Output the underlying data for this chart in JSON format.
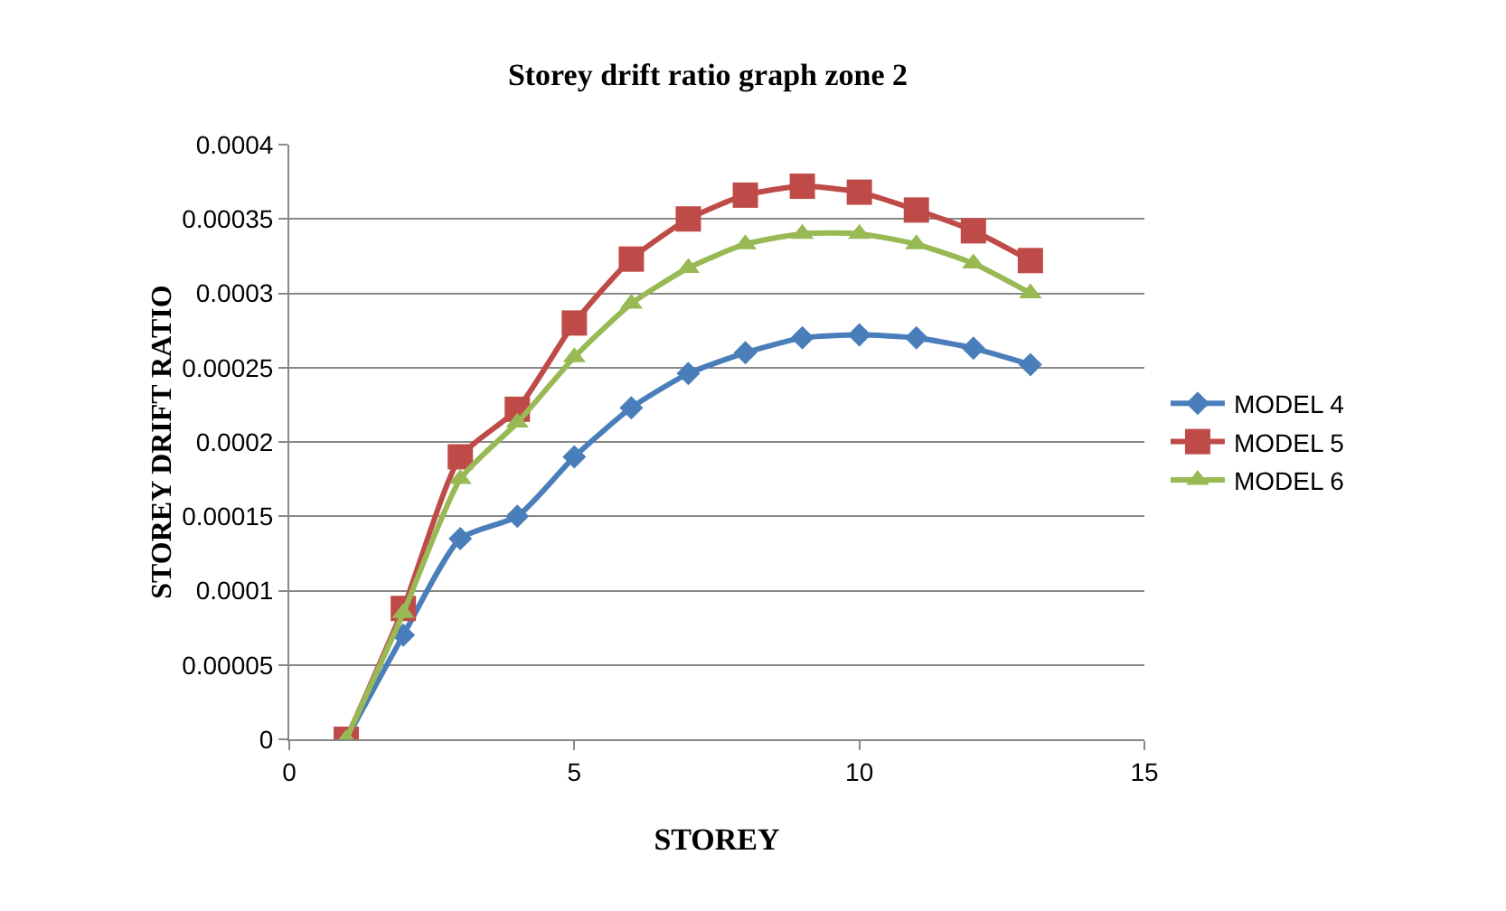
{
  "chart_data": {
    "type": "line",
    "title": "Storey drift ratio graph zone 2",
    "xlabel": "STOREY",
    "ylabel": "STOREY DRIFT RATIO",
    "x": [
      1,
      2,
      3,
      4,
      5,
      6,
      7,
      8,
      9,
      10,
      11,
      12,
      13
    ],
    "series": [
      {
        "name": "MODEL 4",
        "color": "#4a7ebb",
        "marker": "diamond",
        "values": [
          0,
          7e-05,
          0.000135,
          0.00015,
          0.00019,
          0.000223,
          0.000246,
          0.00026,
          0.00027,
          0.000272,
          0.00027,
          0.000263,
          0.000252
        ]
      },
      {
        "name": "MODEL 5",
        "color": "#be4b48",
        "marker": "square",
        "values": [
          0,
          8.8e-05,
          0.00019,
          0.000222,
          0.00028,
          0.000323,
          0.00035,
          0.000366,
          0.000372,
          0.000368,
          0.000356,
          0.000342,
          0.000322
        ]
      },
      {
        "name": "MODEL 6",
        "color": "#98b954",
        "marker": "triangle",
        "values": [
          0,
          8.5e-05,
          0.000175,
          0.000213,
          0.000257,
          0.000293,
          0.000317,
          0.000333,
          0.00034,
          0.00034,
          0.000333,
          0.00032,
          0.0003
        ]
      }
    ],
    "xlim": [
      0,
      15
    ],
    "xticks": [
      0,
      5,
      10,
      15
    ],
    "ylim": [
      0,
      0.0004
    ],
    "yticks": [
      0,
      {
        "value": 5e-05,
        "label": "0.00005"
      },
      0.0001,
      0.00015,
      0.0002,
      0.00025,
      0.0003,
      0.00035,
      0.0004
    ],
    "grid": "y",
    "legend": "right",
    "line_style": "solid"
  }
}
